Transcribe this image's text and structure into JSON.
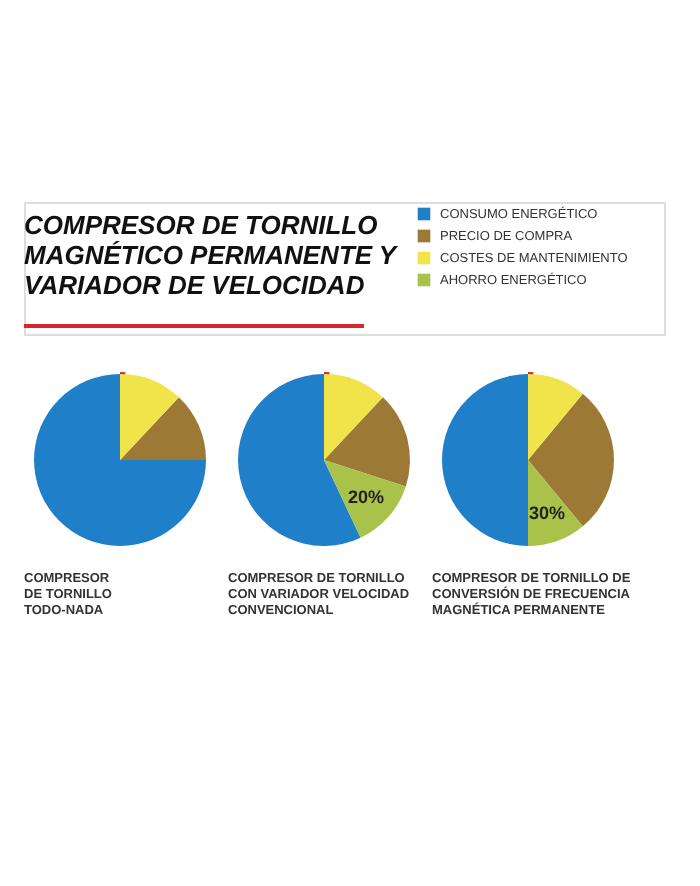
{
  "chart_data": [
    {
      "type": "pie",
      "title": "COMPRESOR DE TORNILLO\nMAGNÉTICO PERMANENTE Y\nVARIADOR DE VELOCIDAD",
      "xlabel": "COMPRESOR\nDE TORNILLO\nTODO-NADA",
      "legend": "top right",
      "categories": [
        "CONSUMO ENERGÉTICO",
        "PRECIO DE COMPRA",
        "COSTES DE MANTENIMIENTO",
        "AHORRO ENERGÉTICO"
      ],
      "colors": [
        "#1f7fc9",
        "#9c7a35",
        "#f0e44a",
        "#a8c24a"
      ],
      "values": [
        75,
        13,
        12,
        null
      ]
    },
    {
      "type": "pie",
      "xlabel": "COMPRESOR DE TORNILLO\nCON VARIADOR VELOCIDAD\nCONVENCIONAL",
      "values": [
        57,
        18,
        12,
        13
      ],
      "annotations": [
        "20%"
      ]
    },
    {
      "type": "pie",
      "xlabel": "COMPRESOR DE TORNILLO DE\nCONVERSIÓN DE FRECUENCIA\nMAGNÉTICA PERMANENTE",
      "values": [
        50,
        28,
        11,
        11
      ],
      "annotations": [
        "30%"
      ]
    }
  ]
}
